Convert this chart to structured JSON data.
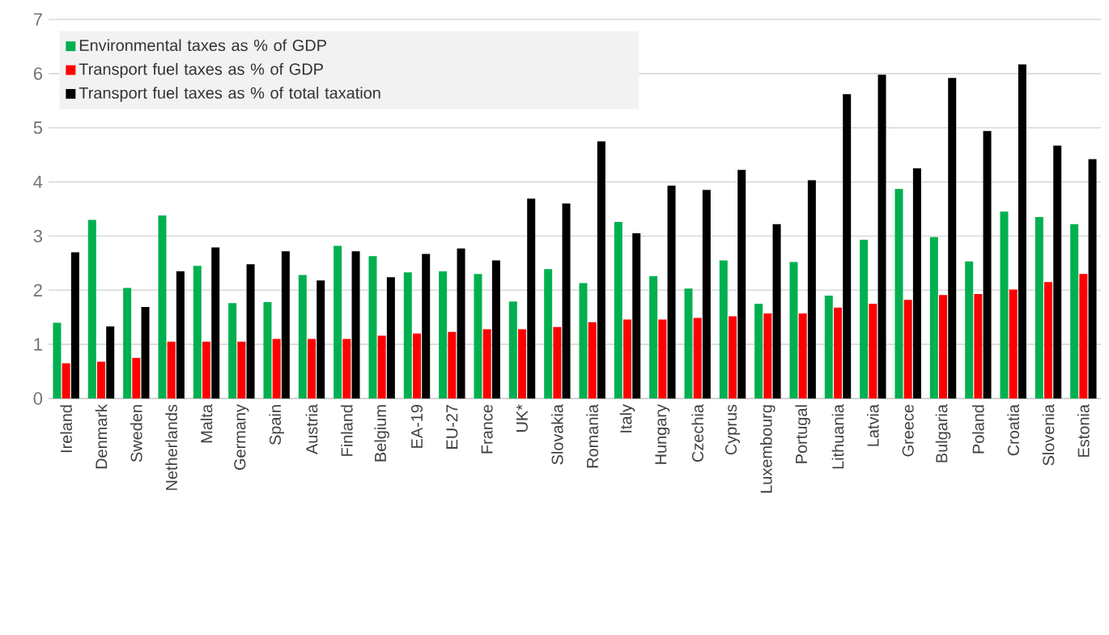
{
  "chart_data": {
    "type": "bar",
    "categories": [
      "Ireland",
      "Denmark",
      "Sweden",
      "Netherlands",
      "Malta",
      "Germany",
      "Spain",
      "Austria",
      "Finland",
      "Belgium",
      "EA-19",
      "EU-27",
      "France",
      "UK*",
      "Slovakia",
      "Romania",
      "Italy",
      "Hungary",
      "Czechia",
      "Cyprus",
      "Luxembourg",
      "Portugal",
      "Lithuania",
      "Latvia",
      "Greece",
      "Bulgaria",
      "Poland",
      "Croatia",
      "Slovenia",
      "Estonia"
    ],
    "series": [
      {
        "name": "Environmental taxes as % of GDP",
        "color": "#00b050",
        "values": [
          1.4,
          3.3,
          2.04,
          3.38,
          2.45,
          1.76,
          1.78,
          2.28,
          2.82,
          2.63,
          2.33,
          2.35,
          2.3,
          1.79,
          2.39,
          2.13,
          3.26,
          2.26,
          2.03,
          2.55,
          1.75,
          2.52,
          1.9,
          2.93,
          3.87,
          2.98,
          2.53,
          3.45,
          3.35,
          3.22
        ]
      },
      {
        "name": "Transport fuel taxes as % of GDP",
        "color": "#ff0000",
        "values": [
          0.65,
          0.68,
          0.75,
          1.05,
          1.05,
          1.05,
          1.1,
          1.1,
          1.1,
          1.16,
          1.2,
          1.23,
          1.28,
          1.28,
          1.32,
          1.41,
          1.46,
          1.46,
          1.49,
          1.52,
          1.57,
          1.57,
          1.68,
          1.75,
          1.82,
          1.91,
          1.93,
          2.01,
          2.15,
          2.3
        ]
      },
      {
        "name": "Transport fuel taxes as % of total taxation",
        "color": "#000000",
        "values": [
          2.7,
          1.33,
          1.69,
          2.35,
          2.79,
          2.48,
          2.72,
          2.18,
          2.72,
          2.24,
          2.67,
          2.77,
          2.55,
          3.69,
          3.6,
          4.75,
          3.05,
          3.93,
          3.85,
          4.22,
          3.22,
          4.03,
          5.62,
          5.98,
          4.25,
          5.92,
          4.94,
          6.17,
          4.67,
          4.42
        ]
      }
    ],
    "ylim": [
      0,
      7
    ],
    "yticks": [
      0,
      1,
      2,
      3,
      4,
      5,
      6,
      7
    ],
    "grid": "y",
    "legend": "top left"
  }
}
